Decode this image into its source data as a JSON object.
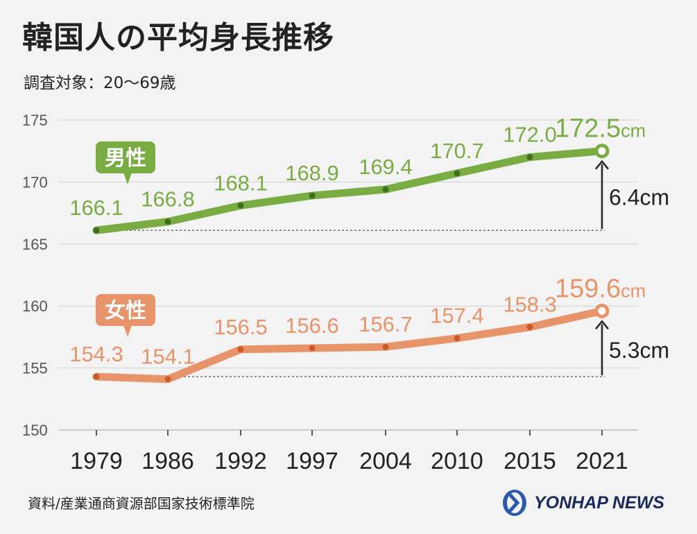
{
  "title": "韓国人の平均身長推移",
  "subtitle": "調査対象：20～69歳",
  "source": "資料/産業通商資源部国家技術標準院",
  "logo": "YONHAP NEWS",
  "colors": {
    "male": "#7aac44",
    "female": "#e8946a",
    "grid": "#cfcfcf",
    "text": "#222222"
  },
  "chart_data": {
    "type": "line",
    "categories": [
      "1979",
      "1986",
      "1992",
      "1997",
      "2004",
      "2010",
      "2015",
      "2021"
    ],
    "ylim": [
      150,
      175
    ],
    "yticks": [
      150,
      155,
      160,
      165,
      170,
      175
    ],
    "grid": true,
    "unit": "cm",
    "series": [
      {
        "name": "男性",
        "values": [
          166.1,
          166.8,
          168.1,
          168.9,
          169.4,
          170.7,
          172.0,
          172.5
        ],
        "labels": [
          "166.1",
          "166.8",
          "168.1",
          "168.9",
          "169.4",
          "170.7",
          "172.0",
          "172.5"
        ],
        "change": "6.4cm"
      },
      {
        "name": "女性",
        "values": [
          154.3,
          154.1,
          156.5,
          156.6,
          156.7,
          157.4,
          158.3,
          159.6
        ],
        "labels": [
          "154.3",
          "154.1",
          "156.5",
          "156.6",
          "156.7",
          "157.4",
          "158.3",
          "159.6"
        ],
        "change": "5.3cm"
      }
    ]
  }
}
